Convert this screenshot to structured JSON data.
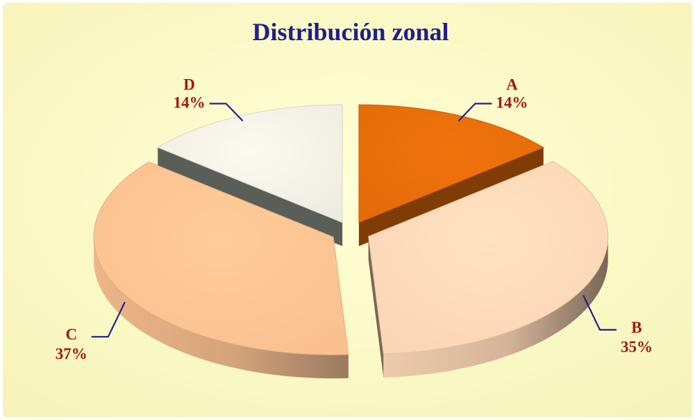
{
  "chart_data": {
    "type": "pie",
    "title": "Distribución zonal",
    "categories": [
      "A",
      "B",
      "C",
      "D"
    ],
    "values": [
      14,
      35,
      37,
      14
    ],
    "value_labels": [
      "14%",
      "35%",
      "37%",
      "14%"
    ],
    "style": "3d-exploded",
    "legend": "none",
    "slice_colors": [
      "#E36C0A",
      "#FBD5B5",
      "#FAC090",
      "#EEECE1"
    ],
    "side_colors": [
      "#7F3C05",
      "#7A6658",
      "#9A7A60",
      "#5A5E58"
    ],
    "background_color": "#FFFFCC",
    "title_color": "#1F1F8C",
    "label_color": "#A31515",
    "leader_color": "#1F1F8C"
  }
}
